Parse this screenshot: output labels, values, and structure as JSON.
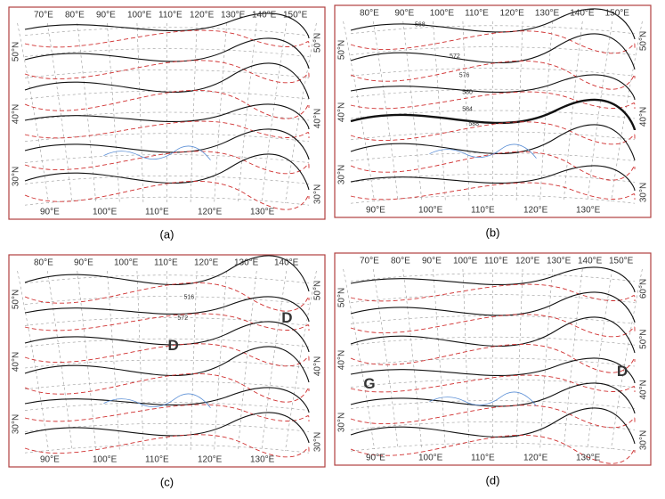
{
  "panels": [
    {
      "label": "(a)",
      "top_lon": [
        "70°E",
        "80°E",
        "90°E",
        "100°E",
        "110°E",
        "120°E",
        "130°E",
        "140°E",
        "150°E"
      ],
      "left_lat": [
        "50°N",
        "40°N",
        "30°N"
      ],
      "bottom_lon": [
        "90°E",
        "100°E",
        "110°E",
        "120°E",
        "130°E"
      ],
      "right_lat": [
        "50°N",
        "40°N",
        "30°N"
      ],
      "contour_labels": [],
      "symbols": []
    },
    {
      "label": "(b)",
      "top_lon": [
        "80°E",
        "90°E",
        "100°E",
        "110°E",
        "120°E",
        "130°E",
        "140°E",
        "150°E"
      ],
      "left_lat": [
        "50°N",
        "40°N",
        "30°N"
      ],
      "bottom_lon": [
        "90°E",
        "100°E",
        "110°E",
        "120°E",
        "130°E"
      ],
      "right_lat": [
        "50°N",
        "40°N",
        "30°N"
      ],
      "contour_labels": [
        "568",
        "572",
        "576",
        "580",
        "584",
        "588"
      ],
      "symbols": []
    },
    {
      "label": "(c)",
      "top_lon": [
        "80°E",
        "90°E",
        "100°E",
        "110°E",
        "120°E",
        "130°E",
        "140°E"
      ],
      "left_lat": [
        "50°N",
        "40°N",
        "30°N"
      ],
      "bottom_lon": [
        "90°E",
        "100°E",
        "110°E",
        "120°E",
        "130°E"
      ],
      "right_lat": [
        "50°N",
        "40°N",
        "30°N"
      ],
      "contour_labels": [
        "516",
        "572"
      ],
      "symbols": [
        {
          "text": "D",
          "color": "#e02020"
        },
        {
          "text": "D",
          "color": "#e02020"
        }
      ]
    },
    {
      "label": "(d)",
      "top_lon": [
        "70°E",
        "80°E",
        "90°E",
        "100°E",
        "110°E",
        "120°E",
        "130°E",
        "140°E",
        "150°E"
      ],
      "left_lat": [
        "50°N",
        "40°N",
        "30°N"
      ],
      "bottom_lon": [
        "90°E",
        "100°E",
        "110°E",
        "120°E",
        "130°E"
      ],
      "right_lat": [
        "60°N",
        "50°N",
        "40°N",
        "30°N"
      ],
      "contour_labels": [],
      "symbols": [
        {
          "text": "G",
          "color": "#1a3fd0"
        },
        {
          "text": "D",
          "color": "#e02020"
        }
      ]
    }
  ]
}
